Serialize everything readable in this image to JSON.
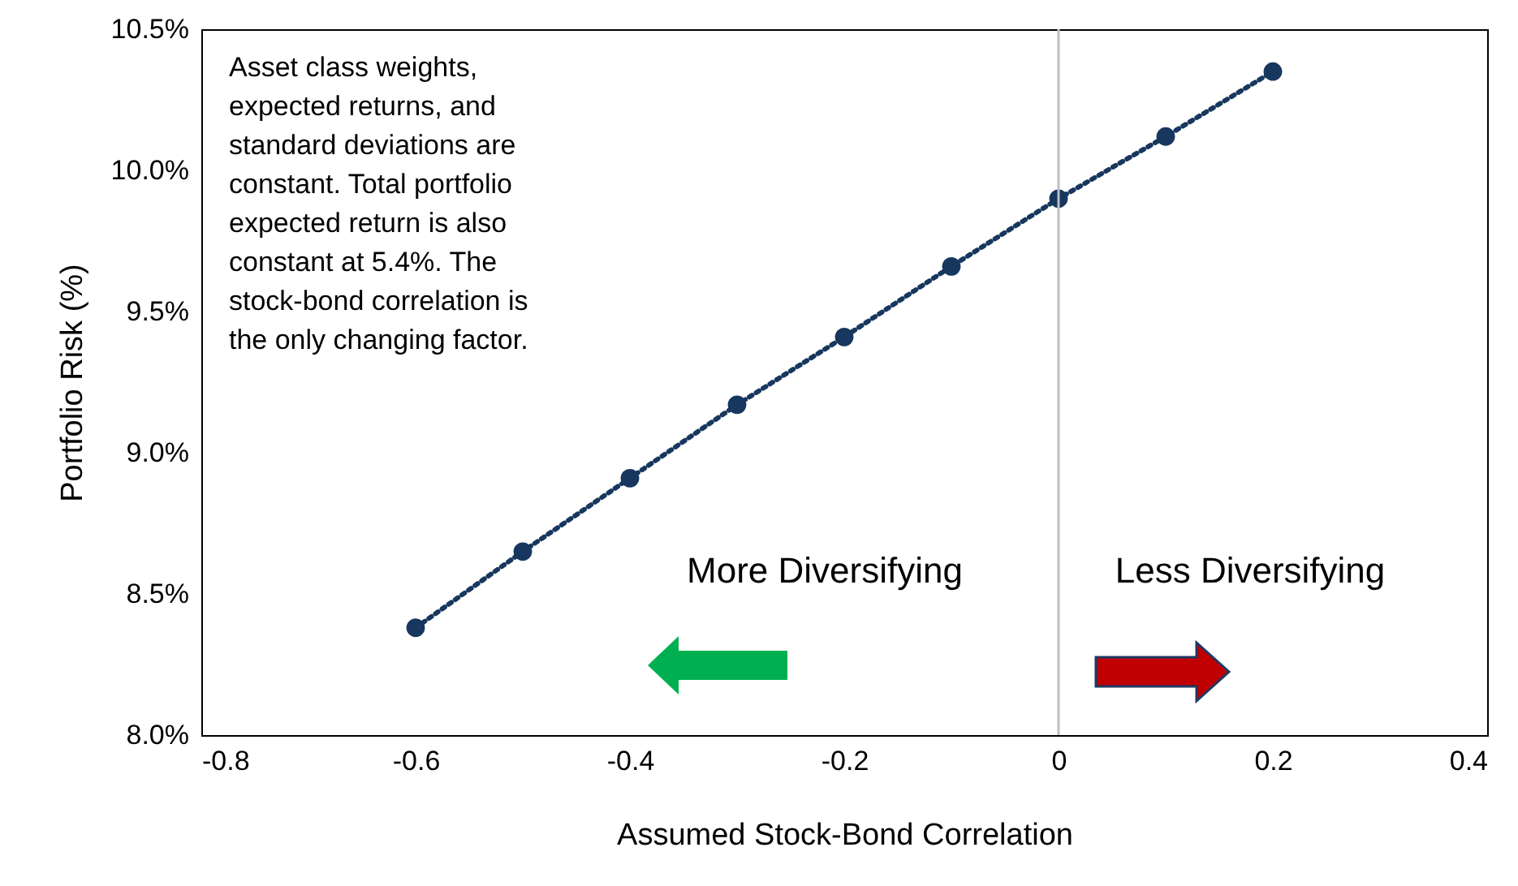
{
  "chart_data": {
    "type": "line",
    "xlabel": "Assumed Stock-Bond Correlation",
    "ylabel": "Portfolio Risk (%)",
    "x": [
      -0.6,
      -0.5,
      -0.4,
      -0.3,
      -0.2,
      -0.1,
      0,
      0.1,
      0.2
    ],
    "series": [
      {
        "color": "#17375e",
        "values": [
          8.38,
          8.65,
          8.91,
          9.17,
          9.41,
          9.66,
          9.9,
          10.12,
          10.35
        ]
      }
    ],
    "xlim": [
      -0.8,
      0.4
    ],
    "xticks": [
      -0.8,
      -0.6,
      -0.4,
      -0.2,
      0,
      0.2,
      0.4
    ],
    "ylim": [
      8.0,
      10.5
    ],
    "yticks": [
      {
        "value": 8.0,
        "label": "8.0%"
      },
      {
        "value": 8.5,
        "label": "8.5%"
      },
      {
        "value": 9.0,
        "label": "9.0%"
      },
      {
        "value": 9.5,
        "label": "9.5%"
      },
      {
        "value": 10.0,
        "label": "10.0%"
      },
      {
        "value": 10.5,
        "label": "10.5%"
      }
    ],
    "ref_lines": [
      {
        "axis": "x",
        "value": 0,
        "color": "#bfbfbf"
      }
    ],
    "marker": "circle",
    "line_style": "dotted",
    "grid": false,
    "annotations": [
      "Asset class weights, expected returns, and standard deviations are constant. Total portfolio expected return is also constant at 5.4%. The stock-bond correlation is the only changing factor.",
      "More Diversifying",
      "Less Diversifying"
    ]
  }
}
